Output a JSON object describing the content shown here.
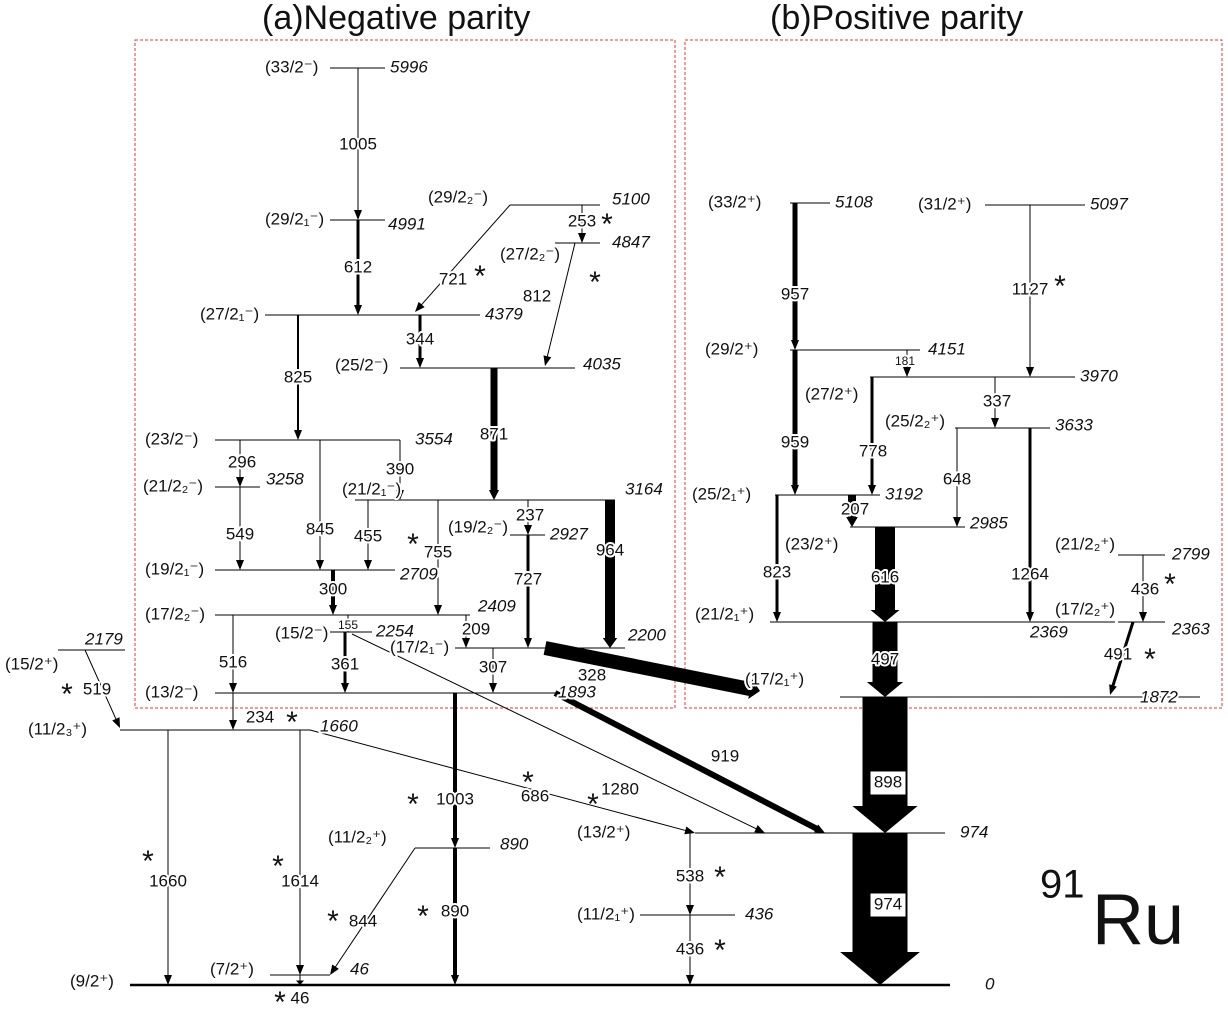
{
  "titles": [
    "(a)Negative parity",
    "(b)Positive parity"
  ],
  "nucleus": {
    "mass": "91",
    "symbol": "Ru"
  },
  "levels": [
    {
      "spin": "(33/2⁻)",
      "energy": 5996
    },
    {
      "spin": "(29/2₁⁻)",
      "energy": 4991
    },
    {
      "spin": "(29/2₂⁻)",
      "energy": 5100
    },
    {
      "spin": "(27/2₂⁻)",
      "energy": 4847
    },
    {
      "spin": "(27/2₁⁻)",
      "energy": 4379
    },
    {
      "spin": "(25/2⁻)",
      "energy": 4035
    },
    {
      "spin": "(23/2⁻)",
      "energy": 3554
    },
    {
      "spin": "(21/2₂⁻)",
      "energy": 3258
    },
    {
      "spin": "(21/2₁⁻)",
      "energy": 3164
    },
    {
      "spin": "(19/2₂⁻)",
      "energy": 2927
    },
    {
      "spin": "(19/2₁⁻)",
      "energy": 2709
    },
    {
      "spin": "(17/2₂⁻)",
      "energy": 2409
    },
    {
      "spin": "(15/2⁻)",
      "energy": 2254
    },
    {
      "spin": "(17/2₁⁻)",
      "energy": 2200
    },
    {
      "spin": "(13/2⁻)",
      "energy": 1893
    },
    {
      "spin": "(15/2⁺)",
      "energy": 2179
    },
    {
      "spin": "(11/2₃⁺)",
      "energy": 1660
    },
    {
      "spin": "(33/2⁺)",
      "energy": 5108
    },
    {
      "spin": "(31/2⁺)",
      "energy": 5097
    },
    {
      "spin": "(29/2⁺)",
      "energy": 4151
    },
    {
      "spin": "(27/2⁺)",
      "energy": 3970
    },
    {
      "spin": "(25/2₂⁺)",
      "energy": 3633
    },
    {
      "spin": "(25/2₁⁺)",
      "energy": 3192
    },
    {
      "spin": "(23/2⁺)",
      "energy": 2985
    },
    {
      "spin": "(21/2₂⁺)",
      "energy": 2799
    },
    {
      "spin": "(21/2₁⁺)",
      "energy": 2369
    },
    {
      "spin": "(17/2₂⁺)",
      "energy": 2363
    },
    {
      "spin": "(17/2₁⁺)",
      "energy": 1872
    },
    {
      "spin": "(13/2⁺)",
      "energy": 974
    },
    {
      "spin": "(11/2₂⁺)",
      "energy": 890
    },
    {
      "spin": "(11/2₁⁺)",
      "energy": 436
    },
    {
      "spin": "(7/2⁺)",
      "energy": 46
    },
    {
      "spin": "(9/2⁺)",
      "energy": 0
    }
  ],
  "transitions": [
    {
      "energy": 1005
    },
    {
      "energy": 612
    },
    {
      "energy": 721,
      "star": "*",
      "star_color": "black"
    },
    {
      "energy": 253,
      "star": "*",
      "star_color": "black"
    },
    {
      "energy": 812,
      "star": "*",
      "star_color": "black"
    },
    {
      "energy": 344
    },
    {
      "energy": 825
    },
    {
      "energy": 871
    },
    {
      "energy": 296
    },
    {
      "energy": 390
    },
    {
      "energy": 845
    },
    {
      "energy": 549
    },
    {
      "energy": 455
    },
    {
      "energy": 755,
      "star": "*",
      "star_color": "black"
    },
    {
      "energy": 237
    },
    {
      "energy": 964
    },
    {
      "energy": 727
    },
    {
      "energy": 300
    },
    {
      "energy": 516
    },
    {
      "energy": 155
    },
    {
      "energy": 361
    },
    {
      "energy": 209
    },
    {
      "energy": 307
    },
    {
      "energy": 1280,
      "star": "*",
      "star_color": "black"
    },
    {
      "energy": 328
    },
    {
      "energy": 919
    },
    {
      "energy": 234,
      "star": "*",
      "star_color": "red"
    },
    {
      "energy": 1003,
      "star": "*",
      "star_color": "red"
    },
    {
      "energy": 519,
      "star": "*",
      "star_color": "red"
    },
    {
      "energy": 686,
      "star": "*",
      "star_color": "red"
    },
    {
      "energy": 1660,
      "star": "*",
      "star_color": "red"
    },
    {
      "energy": 1614,
      "star": "*",
      "star_color": "red"
    },
    {
      "energy": 844,
      "star": "*",
      "star_color": "red"
    },
    {
      "energy": 890,
      "star": "*",
      "star_color": "red"
    },
    {
      "energy": 46,
      "star": "*",
      "star_color": "red"
    },
    {
      "energy": 538,
      "star": "*",
      "star_color": "black"
    },
    {
      "energy": 436,
      "star": "*",
      "star_color": "black"
    },
    {
      "energy": 974
    },
    {
      "energy": 898
    },
    {
      "energy": 497
    },
    {
      "energy": 616
    },
    {
      "energy": 207
    },
    {
      "energy": 957
    },
    {
      "energy": 959
    },
    {
      "energy": 181
    },
    {
      "energy": 778
    },
    {
      "energy": 337
    },
    {
      "energy": 648
    },
    {
      "energy": 1264
    },
    {
      "energy": 823
    },
    {
      "energy": 1127,
      "star": "*",
      "star_color": "black"
    },
    {
      "energy": 436,
      "star": "*",
      "star_color": "black"
    },
    {
      "energy": 491,
      "star": "*",
      "star_color": "black"
    }
  ]
}
